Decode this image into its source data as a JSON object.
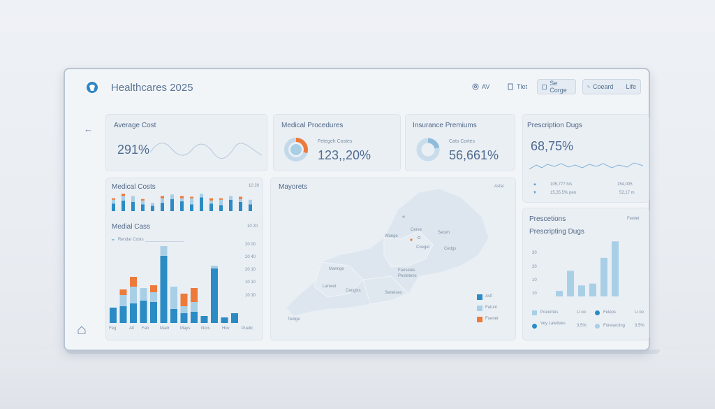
{
  "app": {
    "title": "Healthcares 2025"
  },
  "header": {
    "btn1": "AV",
    "btn2": "Tlet",
    "btn3": "Se Corge",
    "btn4": "Coeard",
    "btn5": "Life"
  },
  "kpis": [
    {
      "title": "Average Cost",
      "value": "291%"
    },
    {
      "title": "Medical Procedures",
      "sub": "Fetegeh Costes",
      "value": "123,,20%",
      "progress": 0.3
    },
    {
      "title": "Insurance Premiums",
      "sub": "Cats Cortes",
      "value": "56,661%",
      "progress": 0.22
    },
    {
      "title": "Prescription Dugs",
      "value": "68,75%"
    }
  ],
  "rx_stats": {
    "row1_left": "105,777 h/s",
    "row1_right": "154,005",
    "row2_left": "15,35.5% pen",
    "row2_right": "52,17 m"
  },
  "medical_costs": {
    "title": "Medical Costs",
    "tag": "10 20",
    "bars": [
      {
        "blue": 10,
        "light": 5,
        "orange": 2
      },
      {
        "blue": 14,
        "light": 6,
        "orange": 3
      },
      {
        "blue": 12,
        "light": 8,
        "orange": 0
      },
      {
        "blue": 9,
        "light": 5,
        "orange": 2
      },
      {
        "blue": 7,
        "light": 4,
        "orange": 0
      },
      {
        "blue": 11,
        "light": 6,
        "orange": 3
      },
      {
        "blue": 16,
        "light": 6,
        "orange": 0
      },
      {
        "blue": 13,
        "light": 4,
        "orange": 3
      },
      {
        "blue": 9,
        "light": 8,
        "orange": 2
      },
      {
        "blue": 18,
        "light": 5,
        "orange": 0
      },
      {
        "blue": 10,
        "light": 4,
        "orange": 3
      },
      {
        "blue": 8,
        "light": 7,
        "orange": 2
      },
      {
        "blue": 15,
        "light": 5,
        "orange": 0
      },
      {
        "blue": 12,
        "light": 4,
        "orange": 3
      },
      {
        "blue": 9,
        "light": 6,
        "orange": 0
      }
    ]
  },
  "medial_cass": {
    "title": "Medial Cass",
    "tag": "10 20",
    "legend": "Rendar Costs",
    "y_ticks": [
      "20 00",
      "20 40",
      "20 10",
      "10 10",
      "10 30"
    ],
    "x_labels": [
      "Feg",
      "Alt",
      "Fab",
      "Madr",
      "Mays",
      "Nors",
      "Hov",
      "Puelic"
    ],
    "bars": [
      {
        "blue": 22,
        "light": 0,
        "orange": 0
      },
      {
        "blue": 24,
        "light": 16,
        "orange": 8
      },
      {
        "blue": 28,
        "light": 24,
        "orange": 14
      },
      {
        "blue": 32,
        "light": 18,
        "orange": 0
      },
      {
        "blue": 30,
        "light": 14,
        "orange": 10
      },
      {
        "blue": 96,
        "light": 14,
        "orange": 0
      },
      {
        "blue": 20,
        "light": 32,
        "orange": 0
      },
      {
        "blue": 14,
        "light": 10,
        "orange": 18
      },
      {
        "blue": 16,
        "light": 14,
        "orange": 20
      },
      {
        "blue": 10,
        "light": 0,
        "orange": 0
      },
      {
        "blue": 78,
        "light": 4,
        "orange": 0
      },
      {
        "blue": 8,
        "light": 0,
        "orange": 0
      },
      {
        "blue": 14,
        "light": 0,
        "orange": 0
      }
    ]
  },
  "map": {
    "title": "Mayorets",
    "tag": "Asfal",
    "labels": [
      "Cerse",
      "Wange",
      "Seceh",
      "Coegel",
      "Cedgs",
      "Mannge",
      "Fansetes",
      "Pestetens",
      "Cengiss",
      "Lanwet",
      "Seneises",
      "Tedige"
    ],
    "legend": [
      "Asfi",
      "Fatunl",
      "Fuenet"
    ]
  },
  "prescriptions": {
    "title": "Prescetions",
    "tag": "Fewlet",
    "subtitle": "Prescripting Dugs",
    "y_ticks": [
      "30",
      "20",
      "10",
      "10"
    ],
    "bars": [
      6,
      28,
      12,
      14,
      42,
      60
    ],
    "legend": [
      {
        "label": "Poeontes",
        "value": "Li oo"
      },
      {
        "label": "Feleps",
        "value": "Li oo"
      },
      {
        "label": "Vey Latetives",
        "value": "3.5%"
      },
      {
        "label": "Foreseciing",
        "value": "3.5%"
      }
    ]
  },
  "colors": {
    "blue": "#2b8bc4",
    "light": "#a9cfe7",
    "orange": "#ec7a3a"
  }
}
